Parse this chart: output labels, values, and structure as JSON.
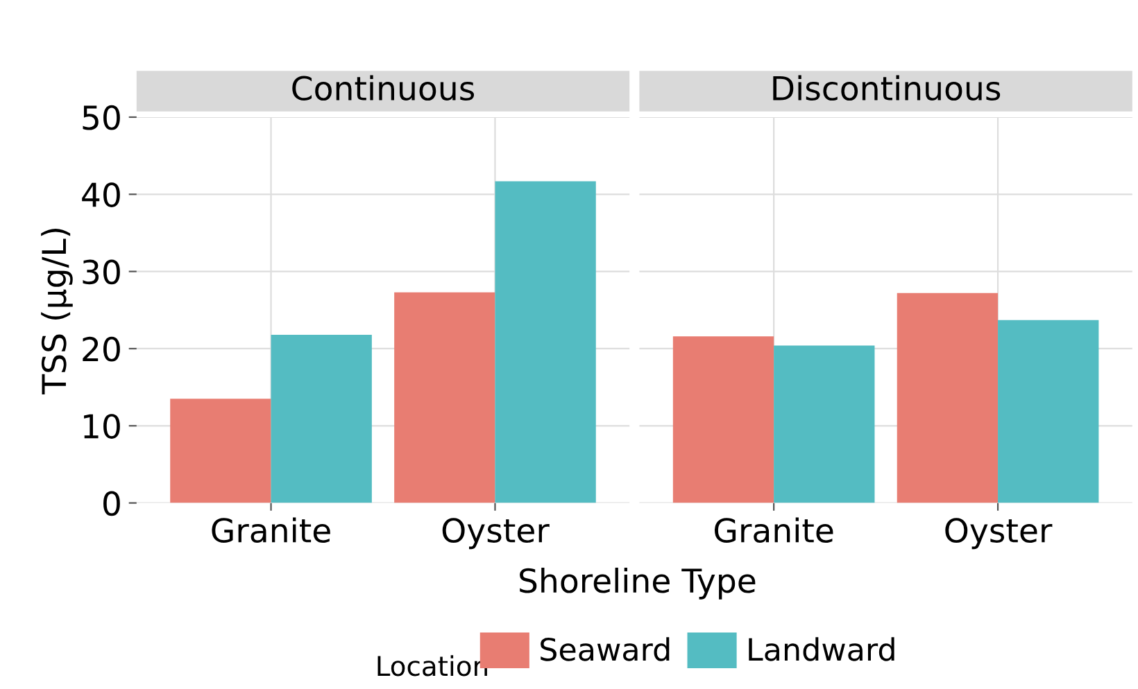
{
  "chart_data": [
    {
      "type": "bar",
      "title": "Continuous",
      "xlabel": "Shoreline Type",
      "ylabel": "TSS (µg/L)",
      "legend_title": "Location",
      "legend": "bottom",
      "grid": true,
      "categories": [
        "Granite",
        "Oyster"
      ],
      "ylim": [
        0,
        50
      ],
      "yticks": [
        0,
        10,
        20,
        30,
        40,
        50
      ],
      "series": [
        {
          "name": "Seaward",
          "color": "#e87d72",
          "values": [
            13.5,
            27.3
          ]
        },
        {
          "name": "Landward",
          "color": "#54bcc2",
          "values": [
            21.8,
            41.7
          ]
        }
      ]
    },
    {
      "type": "bar",
      "title": "Discontinuous",
      "grid": true,
      "tick_labels": "x",
      "categories": [
        "Granite",
        "Oyster"
      ],
      "ylim": [
        0,
        50
      ],
      "yticks": [
        0,
        10,
        20,
        30,
        40,
        50
      ],
      "series": [
        {
          "color": "#e87d72",
          "values": [
            21.6,
            27.2
          ]
        },
        {
          "color": "#54bcc2",
          "values": [
            20.4,
            23.7
          ]
        }
      ]
    }
  ]
}
